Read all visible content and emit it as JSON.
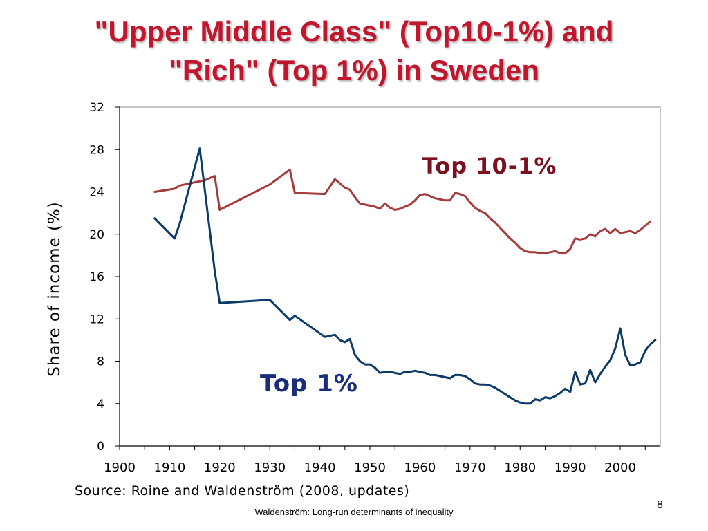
{
  "slide": {
    "title_line1": "\"Upper Middle Class\" (Top10-1%) and",
    "title_line2": "\"Rich\" (Top 1%) in Sweden",
    "source": "Source: Roine and Waldenström (2008, updates)",
    "footer": "Waldenström: Long-run determinants of inequality",
    "page_number": "8"
  },
  "chart_data": {
    "type": "line",
    "title": "",
    "xlabel": "",
    "ylabel": "Share of income (%)",
    "xlim": [
      1900,
      2008
    ],
    "ylim": [
      0,
      32
    ],
    "xticks": [
      1900,
      1910,
      1920,
      1930,
      1940,
      1950,
      1960,
      1970,
      1980,
      1990,
      2000
    ],
    "yticks": [
      0,
      4,
      8,
      12,
      16,
      20,
      24,
      28,
      32
    ],
    "grid": false,
    "series": [
      {
        "name": "Top 10-1%",
        "color": "#a33b3b",
        "label_color": "#7a1020",
        "x": [
          1907,
          1911,
          1912,
          1913,
          1914,
          1915,
          1916,
          1917,
          1918,
          1919,
          1920,
          1930,
          1934,
          1935,
          1941,
          1943,
          1944,
          1945,
          1946,
          1947,
          1948,
          1949,
          1950,
          1951,
          1952,
          1953,
          1954,
          1955,
          1956,
          1957,
          1958,
          1959,
          1960,
          1961,
          1962,
          1963,
          1964,
          1965,
          1966,
          1967,
          1968,
          1969,
          1970,
          1971,
          1972,
          1973,
          1974,
          1975,
          1976,
          1977,
          1978,
          1979,
          1980,
          1981,
          1982,
          1983,
          1984,
          1985,
          1986,
          1987,
          1988,
          1989,
          1990,
          1991,
          1992,
          1993,
          1994,
          1995,
          1996,
          1997,
          1998,
          1999,
          2000,
          2001,
          2002,
          2003,
          2004,
          2005,
          2006
        ],
        "y": [
          24.0,
          24.3,
          24.6,
          24.7,
          24.8,
          24.9,
          25.0,
          25.1,
          25.3,
          25.5,
          22.3,
          24.7,
          26.1,
          23.9,
          23.8,
          25.2,
          24.8,
          24.4,
          24.2,
          23.5,
          22.9,
          22.8,
          22.7,
          22.6,
          22.4,
          22.9,
          22.5,
          22.3,
          22.4,
          22.6,
          22.8,
          23.2,
          23.7,
          23.8,
          23.6,
          23.4,
          23.3,
          23.2,
          23.2,
          23.9,
          23.8,
          23.6,
          23.0,
          22.5,
          22.2,
          22.0,
          21.5,
          21.1,
          20.6,
          20.1,
          19.6,
          19.2,
          18.7,
          18.4,
          18.3,
          18.3,
          18.2,
          18.2,
          18.3,
          18.4,
          18.2,
          18.2,
          18.6,
          19.6,
          19.5,
          19.6,
          20.0,
          19.8,
          20.3,
          20.5,
          20.1,
          20.5,
          20.1,
          20.2,
          20.3,
          20.1,
          20.4,
          20.8,
          21.2
        ]
      },
      {
        "name": "Top 1%",
        "color": "#0b3a66",
        "label_color": "#1a2d7c",
        "x": [
          1907,
          1911,
          1912,
          1916,
          1919,
          1920,
          1930,
          1934,
          1935,
          1941,
          1943,
          1944,
          1945,
          1946,
          1947,
          1948,
          1949,
          1950,
          1951,
          1952,
          1953,
          1954,
          1955,
          1956,
          1957,
          1958,
          1959,
          1960,
          1961,
          1962,
          1963,
          1964,
          1965,
          1966,
          1967,
          1968,
          1969,
          1970,
          1971,
          1972,
          1973,
          1974,
          1975,
          1976,
          1977,
          1978,
          1979,
          1980,
          1981,
          1982,
          1983,
          1984,
          1985,
          1986,
          1987,
          1988,
          1989,
          1990,
          1991,
          1992,
          1993,
          1994,
          1995,
          1996,
          1997,
          1998,
          1999,
          2000,
          2001,
          2002,
          2003,
          2004,
          2005,
          2006,
          2007
        ],
        "y": [
          21.5,
          19.6,
          21.0,
          28.1,
          16.5,
          13.5,
          13.8,
          11.9,
          12.3,
          10.3,
          10.5,
          10.0,
          9.8,
          10.1,
          8.6,
          8.0,
          7.7,
          7.7,
          7.4,
          6.9,
          7.0,
          7.0,
          6.9,
          6.8,
          7.0,
          7.0,
          7.1,
          7.0,
          6.9,
          6.7,
          6.7,
          6.6,
          6.5,
          6.4,
          6.7,
          6.7,
          6.6,
          6.3,
          5.9,
          5.8,
          5.8,
          5.7,
          5.5,
          5.2,
          4.9,
          4.6,
          4.3,
          4.1,
          4.0,
          4.0,
          4.4,
          4.3,
          4.6,
          4.5,
          4.7,
          5.0,
          5.4,
          5.1,
          7.0,
          5.8,
          5.9,
          7.2,
          6.0,
          6.8,
          7.5,
          8.1,
          9.2,
          11.1,
          8.6,
          7.6,
          7.7,
          7.9,
          9.0,
          9.6,
          10.0
        ]
      }
    ]
  }
}
